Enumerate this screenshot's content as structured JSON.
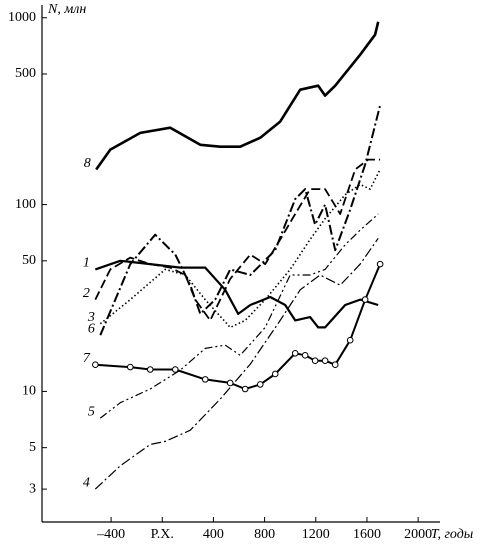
{
  "chart_data": {
    "type": "line",
    "ylabel": "N, млн",
    "xlabel": "T, годы",
    "xlim": [
      -940,
      2640
    ],
    "ylim": [
      2,
      1170
    ],
    "log_y": true,
    "xticks": [
      {
        "value": -400,
        "label": "–400"
      },
      {
        "value": 0,
        "label": "Р.Х."
      },
      400,
      800,
      1200,
      1600,
      2000
    ],
    "yticks": [
      3,
      5,
      10,
      50,
      100,
      500,
      1000
    ],
    "series": [
      {
        "name": "1",
        "color": "#000",
        "dash": "solid",
        "width": 2.2,
        "x": [
          -523,
          -328,
          -94,
          141,
          336,
          492,
          594,
          688,
          844,
          961,
          1039,
          1156,
          1219,
          1273,
          1430,
          1547,
          1688
        ],
        "values": [
          45,
          50,
          48,
          46,
          46,
          35,
          26,
          29,
          32,
          29,
          24,
          25,
          22,
          22,
          29,
          31,
          29
        ]
      },
      {
        "name": "2",
        "color": "#000",
        "dash": "dashed",
        "width": 1.8,
        "x": [
          -523,
          -406,
          -250,
          -94,
          62,
          180,
          258,
          375,
          531,
          688,
          805,
          922,
          1039,
          1156,
          1273,
          1391,
          1508,
          1609,
          1703
        ],
        "values": [
          31,
          45,
          52,
          48,
          46,
          42,
          31,
          24,
          40,
          54,
          48,
          65,
          89,
          121,
          121,
          89,
          154,
          174,
          174
        ]
      },
      {
        "name": "3",
        "color": "#000",
        "dash": "dotted",
        "width": 1.6,
        "x": [
          -484,
          -250,
          23,
          180,
          336,
          531,
          648,
          805,
          1000,
          1156,
          1273,
          1430,
          1547,
          1625,
          1703
        ],
        "values": [
          23,
          31,
          45,
          42,
          31,
          22,
          24,
          31,
          45,
          65,
          84,
          113,
          128,
          121,
          154
        ]
      },
      {
        "name": "4",
        "color": "#000",
        "dash": "dashdot",
        "width": 1.2,
        "x": [
          -523,
          -328,
          -94,
          23,
          219,
          453,
          688,
          922,
          1078,
          1234,
          1391,
          1547,
          1688
        ],
        "values": [
          3,
          4,
          5.2,
          5.4,
          6.2,
          9.1,
          14,
          24,
          35,
          42,
          37,
          48,
          66
        ]
      },
      {
        "name": "5",
        "color": "#000",
        "dash": "dashdotdot",
        "width": 1.2,
        "x": [
          -484,
          -328,
          -94,
          141,
          336,
          492,
          609,
          805,
          1000,
          1156,
          1273,
          1430,
          1547,
          1688
        ],
        "values": [
          7.2,
          8.7,
          10.3,
          13,
          17,
          17.7,
          15.6,
          22,
          42,
          42,
          45,
          61,
          73,
          89
        ]
      },
      {
        "name": "6",
        "color": "#000",
        "dash": "dashdot",
        "width": 2,
        "x": [
          -484,
          -250,
          -55,
          102,
          219,
          297,
          414,
          531,
          688,
          883,
          1039,
          1117,
          1195,
          1273,
          1352,
          1469,
          1586,
          1703
        ],
        "values": [
          20,
          48,
          69,
          54,
          37,
          26,
          31,
          45,
          42,
          57,
          107,
          121,
          78,
          100,
          57,
          94,
          164,
          340
        ]
      },
      {
        "name": "7",
        "color": "#000",
        "dash": "solid",
        "width": 2,
        "markers": true,
        "x": [
          -523,
          -250,
          -94,
          102,
          336,
          531,
          648,
          766,
          883,
          1039,
          1117,
          1195,
          1273,
          1352,
          1469,
          1586,
          1703
        ],
        "values": [
          13.9,
          13.5,
          13.1,
          13.1,
          11.6,
          11.1,
          10.3,
          10.9,
          12.4,
          16,
          15.6,
          14.6,
          14.6,
          13.9,
          18.8,
          31,
          48
        ]
      },
      {
        "name": "8",
        "color": "#000",
        "dash": "solid",
        "width": 2.6,
        "x": [
          -516,
          -406,
          -172,
          62,
          297,
          453,
          609,
          766,
          922,
          1078,
          1219,
          1273,
          1352,
          1547,
          1664,
          1688
        ],
        "values": [
          154,
          197,
          242,
          258,
          209,
          204,
          204,
          228,
          278,
          412,
          433,
          383,
          433,
          634,
          811,
          951
        ]
      }
    ]
  }
}
